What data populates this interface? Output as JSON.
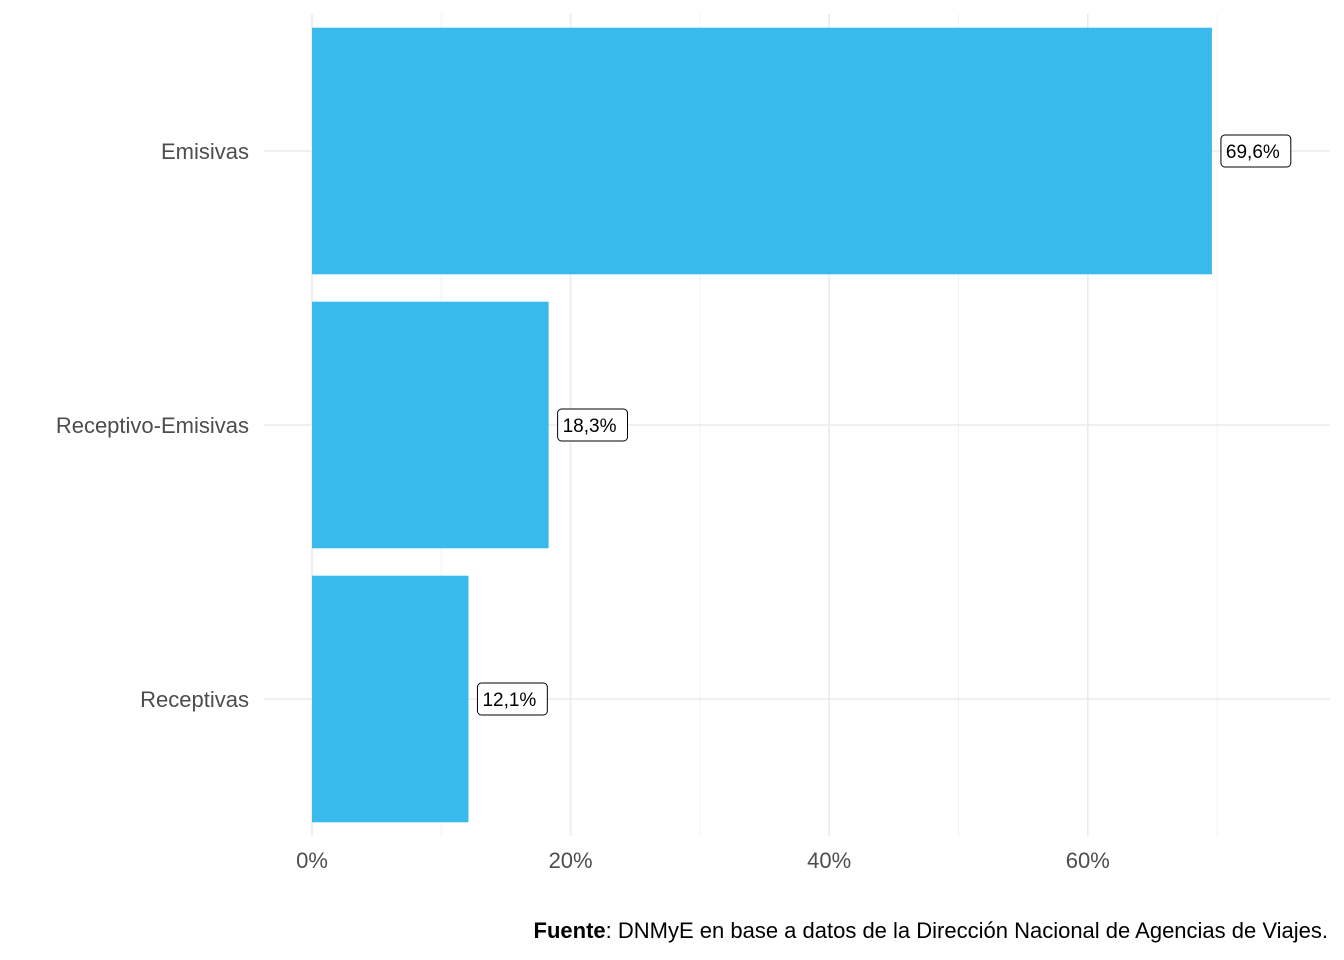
{
  "chart_data": {
    "type": "bar",
    "orientation": "horizontal",
    "categories": [
      "Emisivas",
      "Receptivo-Emisivas",
      "Receptivas"
    ],
    "values": [
      69.6,
      18.3,
      12.1
    ],
    "data_labels": [
      "69,6%",
      "18,3%",
      "12,1%"
    ],
    "x_ticks": [
      0,
      20,
      40,
      60
    ],
    "x_tick_labels": [
      "0%",
      "20%",
      "40%",
      "60%"
    ],
    "xlim": [
      0,
      78.9
    ],
    "grid": true,
    "bar_color": "#38BBEC",
    "title": "",
    "xlabel": "",
    "ylabel": ""
  },
  "caption": {
    "bold": "Fuente",
    "text": ": DNMyE en base a datos de la Dirección Nacional de Agencias de Viajes."
  }
}
